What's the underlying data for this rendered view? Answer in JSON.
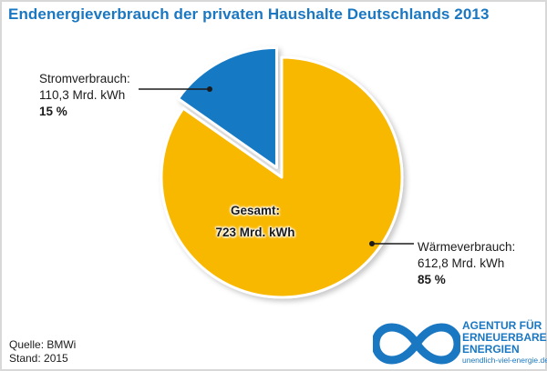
{
  "chart_data": {
    "type": "pie",
    "title": "Endenergieverbrauch der privaten Haushalte Deutschlands 2013",
    "center_label": {
      "line1": "Gesamt:",
      "line2": "723 Mrd. kWh"
    },
    "series": [
      {
        "name": "Stromverbrauch:",
        "value_label": "110,3 Mrd. kWh",
        "percent_label": "15 %",
        "value": 110.3,
        "percent": 15,
        "color": "#1479c4",
        "exploded": true
      },
      {
        "name": "Wärmeverbrauch:",
        "value_label": "612,8 Mrd. kWh",
        "percent_label": "85 %",
        "value": 612.8,
        "percent": 85,
        "color": "#f9b800",
        "exploded": false
      }
    ]
  },
  "source": {
    "line1": "Quelle: BMWi",
    "line2": "Stand: 2015"
  },
  "logo": {
    "line1": "AGENTUR FÜR",
    "line2": "ERNEUERBARE",
    "line3": "ENERGIEN",
    "url": "unendlich-viel-energie.de",
    "color": "#1a77c2"
  }
}
